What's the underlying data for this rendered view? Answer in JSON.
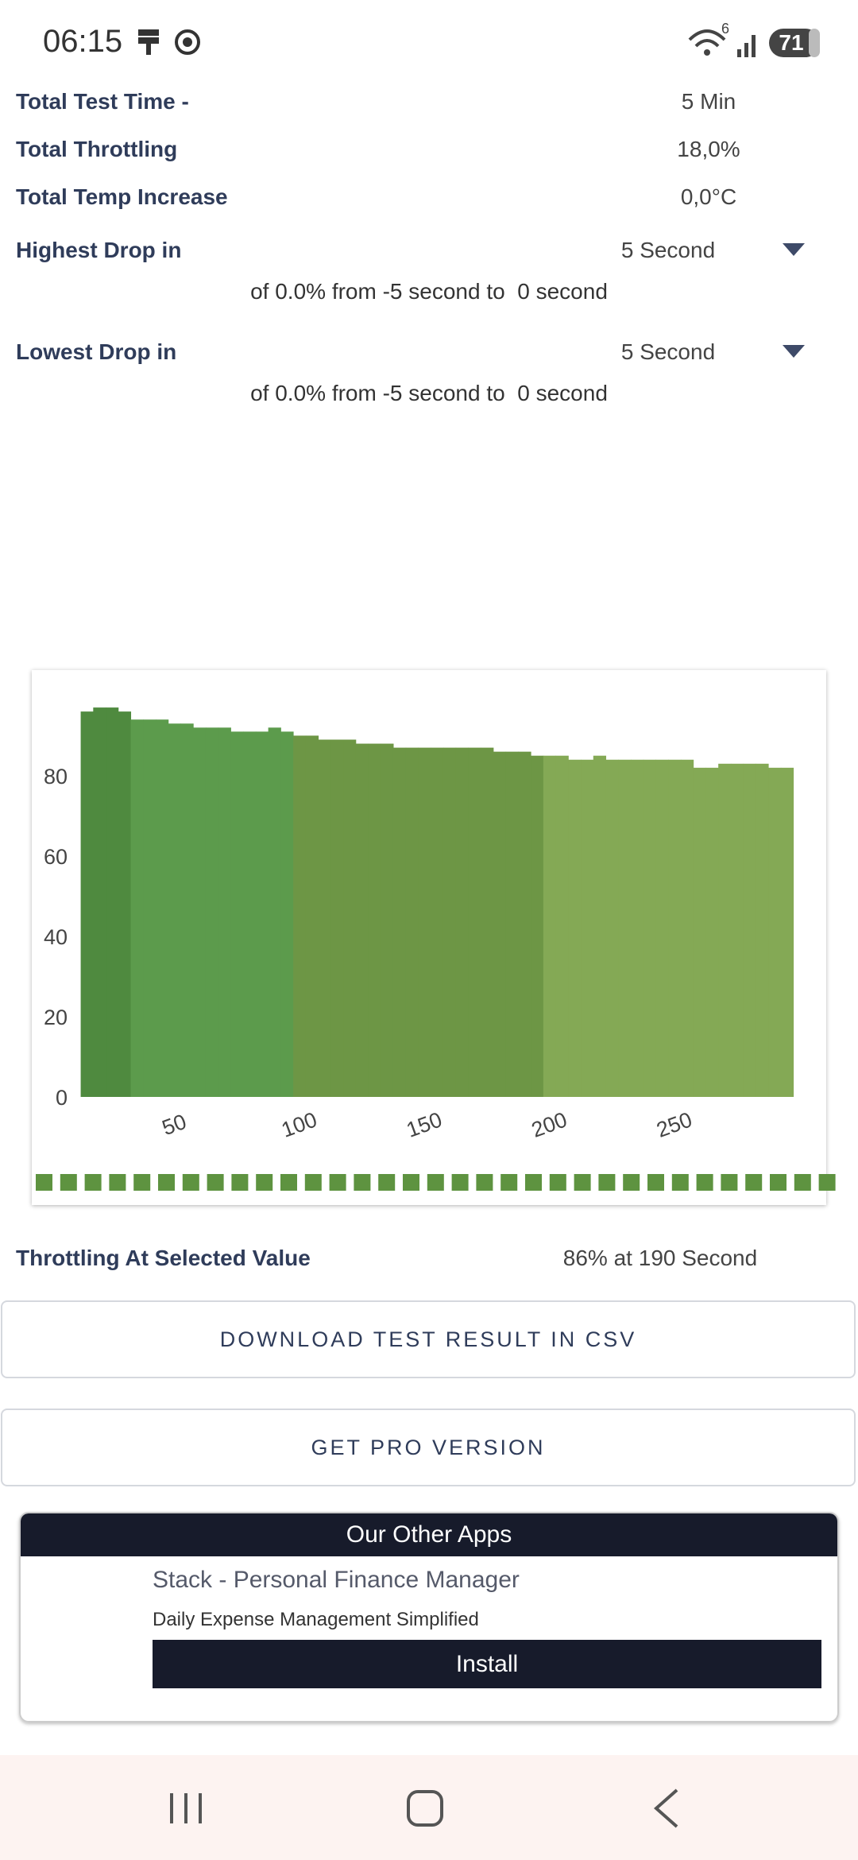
{
  "status_bar": {
    "time": "06:15",
    "wifi_badge": "6",
    "battery": "71"
  },
  "summary": {
    "rows": [
      [
        "Total Test Time -",
        "5 Min"
      ],
      [
        "Total Throttling",
        "18,0%"
      ],
      [
        "Total Temp Increase",
        "0,0°C"
      ]
    ]
  },
  "drops": [
    {
      "label": "Highest Drop in",
      "selection": "5 Second",
      "detail": "of 0.0% from -5 second to  0 second"
    },
    {
      "label": "Lowest Drop in",
      "selection": "5 Second",
      "detail": "of 0.0% from -5 second to  0 second"
    }
  ],
  "chart_data": {
    "type": "bar",
    "x": [
      15,
      20,
      25,
      30,
      35,
      40,
      45,
      50,
      55,
      60,
      65,
      70,
      75,
      80,
      85,
      90,
      95,
      100,
      105,
      110,
      115,
      120,
      125,
      130,
      135,
      140,
      145,
      150,
      155,
      160,
      165,
      170,
      175,
      180,
      185,
      190,
      195,
      200,
      205,
      210,
      215,
      220,
      225,
      230,
      235,
      240,
      245,
      250,
      255,
      260,
      265,
      270,
      275,
      280,
      285,
      290,
      295
    ],
    "values": [
      96,
      97,
      97,
      96,
      94,
      94,
      94,
      93,
      93,
      92,
      92,
      92,
      91,
      91,
      91,
      92,
      91,
      90,
      90,
      89,
      89,
      89,
      88,
      88,
      88,
      87,
      87,
      87,
      87,
      87,
      87,
      87,
      87,
      86,
      86,
      86,
      85,
      85,
      85,
      84,
      84,
      85,
      84,
      84,
      84,
      84,
      84,
      84,
      84,
      82,
      82,
      83,
      83,
      83,
      83,
      82,
      82
    ],
    "colors": [
      "#4f8a3f",
      "#4f8a3f",
      "#4f8a3f",
      "#4f8a3f",
      "#5c9b4c",
      "#5c9b4c",
      "#5c9b4c",
      "#5c9b4c",
      "#5c9b4c",
      "#5c9b4c",
      "#5c9b4c",
      "#5c9b4c",
      "#5c9b4c",
      "#5c9b4c",
      "#5c9b4c",
      "#5c9b4c",
      "#5c9b4c",
      "#6d9645",
      "#6d9645",
      "#6d9645",
      "#6d9645",
      "#6d9645",
      "#6d9645",
      "#6d9645",
      "#6d9645",
      "#6d9645",
      "#6d9645",
      "#6d9645",
      "#6d9645",
      "#6d9645",
      "#6d9645",
      "#6d9645",
      "#6d9645",
      "#6d9645",
      "#6d9645",
      "#6d9645",
      "#6d9645",
      "#84a955",
      "#84a955",
      "#84a955",
      "#84a955",
      "#84a955",
      "#84a955",
      "#84a955",
      "#84a955",
      "#84a955",
      "#84a955",
      "#84a955",
      "#84a955",
      "#84a955",
      "#84a955",
      "#84a955",
      "#84a955",
      "#84a955",
      "#84a955",
      "#84a955",
      "#84a955"
    ],
    "xlim": [
      12,
      297
    ],
    "ylim": [
      0,
      99
    ],
    "xticks": [
      50,
      100,
      150,
      200,
      250
    ],
    "yticks": [
      0,
      20,
      40,
      60,
      80
    ],
    "grid": false
  },
  "selected": {
    "label": "Throttling At Selected Value",
    "value": "86% at 190 Second"
  },
  "buttons": [
    "DOWNLOAD TEST RESULT IN CSV",
    "GET PRO VERSION"
  ],
  "other_apps": {
    "title": "Our Other Apps",
    "app_name": "Stack - Personal Finance Manager",
    "tagline": "Daily Expense Management Simplified",
    "install": "Install"
  }
}
